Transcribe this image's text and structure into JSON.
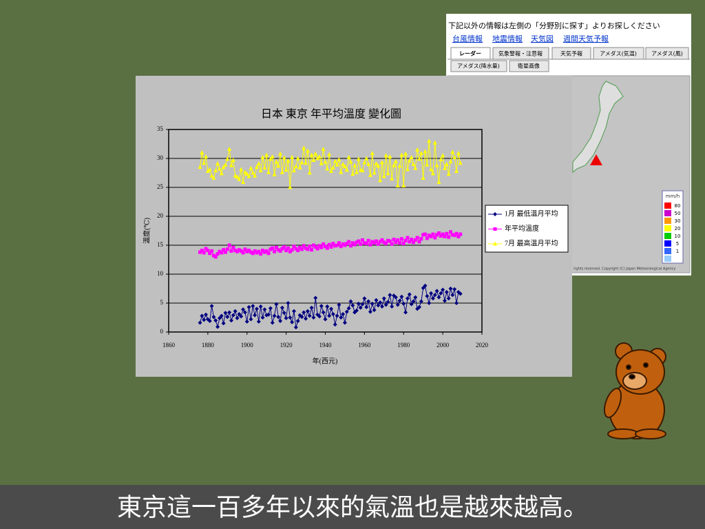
{
  "chart_data": {
    "type": "line",
    "title": "日本 東京 年平均溫度 變化圖",
    "x_label": "年(西元)",
    "y_label": "溫度(℃)",
    "x": [
      1876,
      1877,
      1878,
      1879,
      1880,
      1881,
      1882,
      1883,
      1884,
      1885,
      1886,
      1887,
      1888,
      1889,
      1890,
      1891,
      1892,
      1893,
      1894,
      1895,
      1896,
      1897,
      1898,
      1899,
      1900,
      1901,
      1902,
      1903,
      1904,
      1905,
      1906,
      1907,
      1908,
      1909,
      1910,
      1911,
      1912,
      1913,
      1914,
      1915,
      1916,
      1917,
      1918,
      1919,
      1920,
      1921,
      1922,
      1923,
      1924,
      1925,
      1926,
      1927,
      1928,
      1929,
      1930,
      1931,
      1932,
      1933,
      1934,
      1935,
      1936,
      1937,
      1938,
      1939,
      1940,
      1941,
      1942,
      1943,
      1944,
      1945,
      1946,
      1947,
      1948,
      1949,
      1950,
      1951,
      1952,
      1953,
      1954,
      1955,
      1956,
      1957,
      1958,
      1959,
      1960,
      1961,
      1962,
      1963,
      1964,
      1965,
      1966,
      1967,
      1968,
      1969,
      1970,
      1971,
      1972,
      1973,
      1974,
      1975,
      1976,
      1977,
      1978,
      1979,
      1980,
      1981,
      1982,
      1983,
      1984,
      1985,
      1986,
      1987,
      1988,
      1989,
      1990,
      1991,
      1992,
      1993,
      1994,
      1995,
      1996,
      1997,
      1998,
      1999,
      2000,
      2001,
      2002,
      2003,
      2004,
      2005,
      2006,
      2007,
      2008,
      2009
    ],
    "series": [
      {
        "name": "1月 最低溫月平均",
        "color": "#000080",
        "marker": "diamond",
        "values": [
          1.6,
          2.8,
          2.1,
          3.0,
          2.2,
          1.9,
          4.5,
          2.6,
          2.0,
          0.9,
          2.4,
          2.8,
          1.5,
          3.3,
          2.6,
          3.4,
          2.0,
          2.9,
          3.6,
          2.4,
          3.1,
          2.7,
          3.9,
          3.4,
          1.8,
          4.3,
          2.2,
          4.5,
          2.9,
          4.0,
          1.8,
          4.4,
          2.5,
          3.9,
          2.9,
          3.0,
          4.1,
          1.6,
          2.8,
          4.8,
          2.6,
          1.9,
          4.2,
          3.3,
          2.4,
          5.0,
          2.5,
          1.7,
          3.6,
          0.8,
          1.9,
          2.9,
          2.6,
          3.4,
          2.3,
          3.6,
          2.8,
          4.2,
          2.5,
          5.9,
          3.0,
          2.7,
          4.5,
          3.4,
          2.2,
          4.4,
          2.8,
          4.0,
          3.1,
          1.3,
          2.8,
          4.7,
          2.5,
          3.1,
          1.6,
          3.5,
          4.1,
          5.3,
          4.6,
          3.4,
          3.7,
          4.9,
          4.2,
          4.8,
          5.8,
          4.3,
          5.3,
          3.5,
          4.9,
          3.8,
          5.5,
          4.6,
          5.1,
          4.4,
          5.8,
          4.7,
          5.2,
          6.4,
          4.4,
          6.3,
          6.0,
          4.7,
          5.4,
          6.1,
          4.9,
          3.4,
          5.8,
          6.5,
          4.8,
          5.3,
          6.0,
          4.0,
          4.3,
          5.3,
          7.6,
          8.0,
          6.2,
          5.0,
          6.7,
          5.8,
          6.4,
          7.1,
          6.0,
          6.7,
          7.3,
          5.4,
          6.9,
          5.8,
          7.5,
          6.4,
          7.4,
          5.0,
          6.9,
          6.6
        ]
      },
      {
        "name": "年平均溫度",
        "color": "#ff00ff",
        "marker": "square",
        "values": [
          13.8,
          14.1,
          13.7,
          14.4,
          14.1,
          13.6,
          14.0,
          13.2,
          13.0,
          13.5,
          13.9,
          13.7,
          14.2,
          13.8,
          14.3,
          15.0,
          14.0,
          14.6,
          14.1,
          13.9,
          14.2,
          14.0,
          13.7,
          14.3,
          13.9,
          14.1,
          13.8,
          13.6,
          14.0,
          13.7,
          13.9,
          13.5,
          14.1,
          13.8,
          14.0,
          13.6,
          14.3,
          14.5,
          13.9,
          14.6,
          14.2,
          14.0,
          14.4,
          14.7,
          14.1,
          14.5,
          13.9,
          14.2,
          14.8,
          14.4,
          14.1,
          14.6,
          14.3,
          14.9,
          14.5,
          14.3,
          14.8,
          14.2,
          15.0,
          14.7,
          14.4,
          14.9,
          14.6,
          15.2,
          14.8,
          14.5,
          15.1,
          14.7,
          15.3,
          14.9,
          15.0,
          15.4,
          14.8,
          15.2,
          15.0,
          15.3,
          15.6,
          14.9,
          15.4,
          15.1,
          15.5,
          15.7,
          15.2,
          15.9,
          15.4,
          15.3,
          15.8,
          15.1,
          15.6,
          15.4,
          15.7,
          15.2,
          15.6,
          15.9,
          15.5,
          15.3,
          15.8,
          15.7,
          15.2,
          16.0,
          15.5,
          15.9,
          15.4,
          16.1,
          15.3,
          15.8,
          16.3,
          15.6,
          16.0,
          15.5,
          15.9,
          16.3,
          15.6,
          16.1,
          16.8,
          16.9,
          16.2,
          16.7,
          16.5,
          16.9,
          16.3,
          16.8,
          17.1,
          16.6,
          16.9,
          16.5,
          17.0,
          16.4,
          17.3,
          16.8,
          16.7,
          17.0,
          16.5,
          16.9
        ]
      },
      {
        "name": "7月 最高溫月平均",
        "color": "#ffff00",
        "marker": "triangle",
        "values": [
          28.5,
          31.0,
          29.2,
          30.3,
          27.8,
          28.1,
          27.0,
          26.6,
          27.9,
          29.1,
          28.2,
          27.4,
          28.5,
          28.9,
          29.9,
          31.6,
          28.8,
          29.7,
          27.0,
          26.8,
          26.4,
          28.1,
          25.9,
          27.6,
          27.3,
          26.9,
          28.3,
          27.5,
          27.0,
          28.5,
          29.1,
          27.9,
          30.2,
          28.4,
          30.6,
          27.6,
          29.9,
          30.3,
          27.2,
          29.4,
          28.7,
          30.8,
          27.6,
          30.1,
          28.0,
          29.6,
          25.0,
          30.2,
          27.9,
          28.6,
          30.0,
          28.4,
          29.3,
          31.8,
          29.2,
          31.3,
          27.5,
          30.6,
          29.7,
          30.8,
          30.0,
          30.3,
          29.1,
          31.6,
          29.4,
          28.2,
          30.7,
          27.8,
          28.4,
          29.5,
          28.9,
          29.8,
          27.6,
          29.0,
          28.6,
          28.0,
          30.2,
          29.4,
          27.3,
          28.8,
          27.6,
          29.9,
          28.0,
          27.9,
          29.3,
          30.0,
          29.0,
          27.1,
          30.9,
          27.5,
          29.1,
          28.7,
          26.2,
          29.3,
          26.9,
          30.5,
          27.4,
          30.3,
          26.5,
          28.8,
          29.5,
          25.3,
          28.7,
          30.6,
          25.3,
          30.8,
          28.1,
          29.6,
          30.2,
          29.0,
          28.3,
          31.5,
          29.9,
          30.9,
          26.6,
          31.2,
          28.9,
          33.0,
          28.1,
          27.4,
          32.7,
          28.8,
          25.9,
          29.8,
          30.5,
          28.3,
          29.0,
          27.3,
          29.5,
          31.1,
          30.2,
          27.8,
          30.9,
          29.2
        ]
      }
    ],
    "xlim": [
      1860,
      2020
    ],
    "xticks": [
      1860,
      1880,
      1900,
      1920,
      1940,
      1960,
      1980,
      2000,
      2020
    ],
    "ylim": [
      0,
      35
    ],
    "yticks": [
      0,
      5,
      10,
      15,
      20,
      25,
      30,
      35
    ],
    "grid": true,
    "legend": "right"
  },
  "web_panel": {
    "notice": "下記以外の情報は左側の「分野別に探す」よりお探しください",
    "links": [
      "台風情報",
      "地震情報",
      "天気図",
      "週間天気予報"
    ],
    "tabs": [
      "レーダー",
      "気象警報・注意報",
      "天気予報",
      "アメダス(気温)",
      "アメダス(風)",
      "アメダス(降水量)",
      "衛星画像"
    ],
    "legend_unit": "mm/h",
    "legend_levels": [
      "80",
      "50",
      "30",
      "20",
      "10",
      "5",
      "1"
    ],
    "copyright": "rights reserved. Copyright (C) Japan Meteorological Agency"
  },
  "caption": "東京這一百多年以來的氣溫也是越來越高。"
}
